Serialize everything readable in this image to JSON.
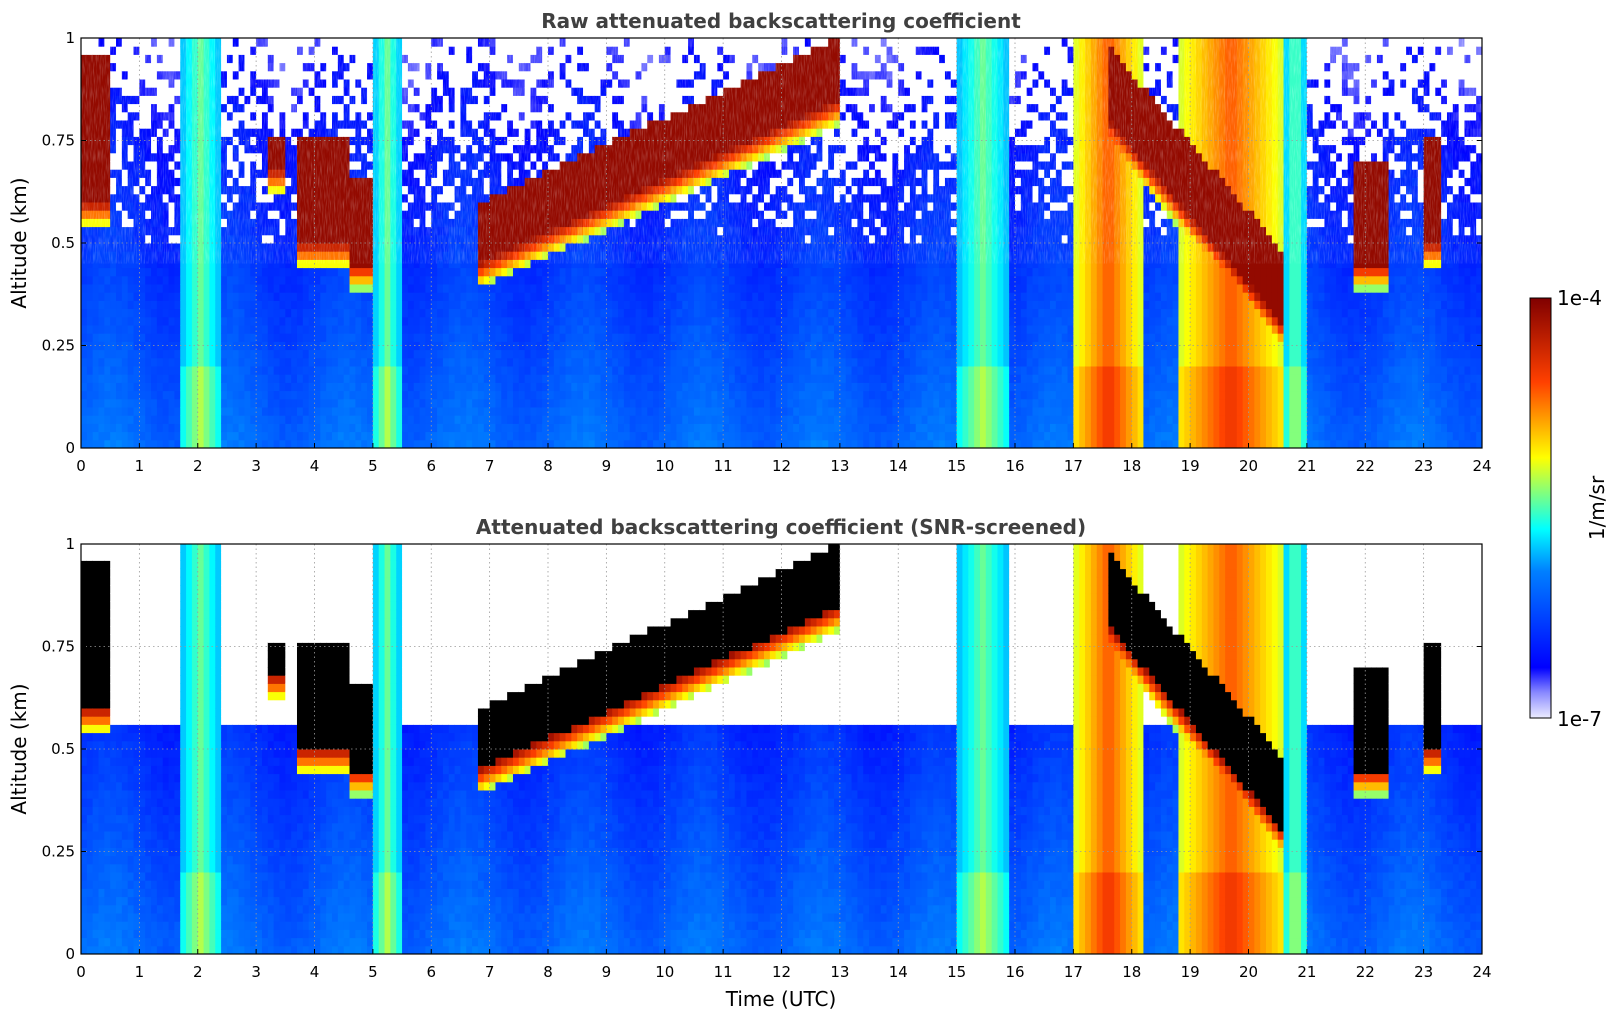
{
  "chart_data": [
    {
      "type": "heatmap",
      "title": "Raw attenuated backscattering coefficient",
      "xlabel": "",
      "ylabel": "Altitude (km)",
      "xlim": [
        0,
        24
      ],
      "ylim": [
        0,
        1
      ],
      "x_ticks": [
        "0",
        "1",
        "2",
        "3",
        "4",
        "5",
        "6",
        "7",
        "8",
        "9",
        "10",
        "11",
        "12",
        "13",
        "14",
        "15",
        "16",
        "17",
        "18",
        "19",
        "20",
        "21",
        "22",
        "23",
        "24"
      ],
      "y_ticks": [
        "0",
        "0.25",
        "0.5",
        "0.75",
        "1"
      ],
      "grid": true,
      "value_scale": "log",
      "colorbar": {
        "min": "1e-7",
        "max": "1e-4",
        "label": "1/m/sr"
      },
      "features": {
        "high_backscatter_layers": [
          {
            "t": [
              0.0,
              0.5
            ],
            "base": 0.6,
            "top": 0.95
          },
          {
            "t": [
              3.2,
              3.5
            ],
            "base": 0.68,
            "top": 0.75
          },
          {
            "t": [
              3.7,
              4.6
            ],
            "base": 0.5,
            "top": 0.75
          },
          {
            "t": [
              4.6,
              5.0
            ],
            "base": 0.45,
            "top": 0.65
          },
          {
            "t": [
              6.8,
              13.0
            ],
            "base_start": 0.45,
            "base_end": 0.85,
            "thickness": 0.15
          },
          {
            "t": [
              17.6,
              20.6
            ],
            "base_start": 0.8,
            "base_end": 0.3,
            "thickness": 0.18
          },
          {
            "t": [
              21.8,
              22.4
            ],
            "base": 0.45,
            "top": 0.7
          },
          {
            "t": [
              23.0,
              23.3
            ],
            "base": 0.5,
            "top": 0.75
          }
        ],
        "precipitation_columns": [
          {
            "t": [
              1.7,
              2.4
            ],
            "level": "medium"
          },
          {
            "t": [
              5.0,
              5.5
            ],
            "level": "medium"
          },
          {
            "t": [
              15.0,
              15.9
            ],
            "level": "medium"
          },
          {
            "t": [
              17.0,
              18.2
            ],
            "level": "high"
          },
          {
            "t": [
              18.8,
              20.6
            ],
            "level": "high"
          },
          {
            "t": [
              20.6,
              21.0
            ],
            "level": "medium"
          }
        ]
      }
    },
    {
      "type": "heatmap",
      "title": "Attenuated backscattering coefficient (SNR-screened)",
      "xlabel": "Time (UTC)",
      "ylabel": "Altitude (km)",
      "xlim": [
        0,
        24
      ],
      "ylim": [
        0,
        1
      ],
      "x_ticks": [
        "0",
        "1",
        "2",
        "3",
        "4",
        "5",
        "6",
        "7",
        "8",
        "9",
        "10",
        "11",
        "12",
        "13",
        "14",
        "15",
        "16",
        "17",
        "18",
        "19",
        "20",
        "21",
        "22",
        "23",
        "24"
      ],
      "y_ticks": [
        "0",
        "0.25",
        "0.5",
        "0.75",
        "1"
      ],
      "grid": true,
      "value_scale": "log",
      "colorbar": {
        "min": "1e-7",
        "max": "1e-4",
        "label": "1/m/sr"
      }
    }
  ]
}
